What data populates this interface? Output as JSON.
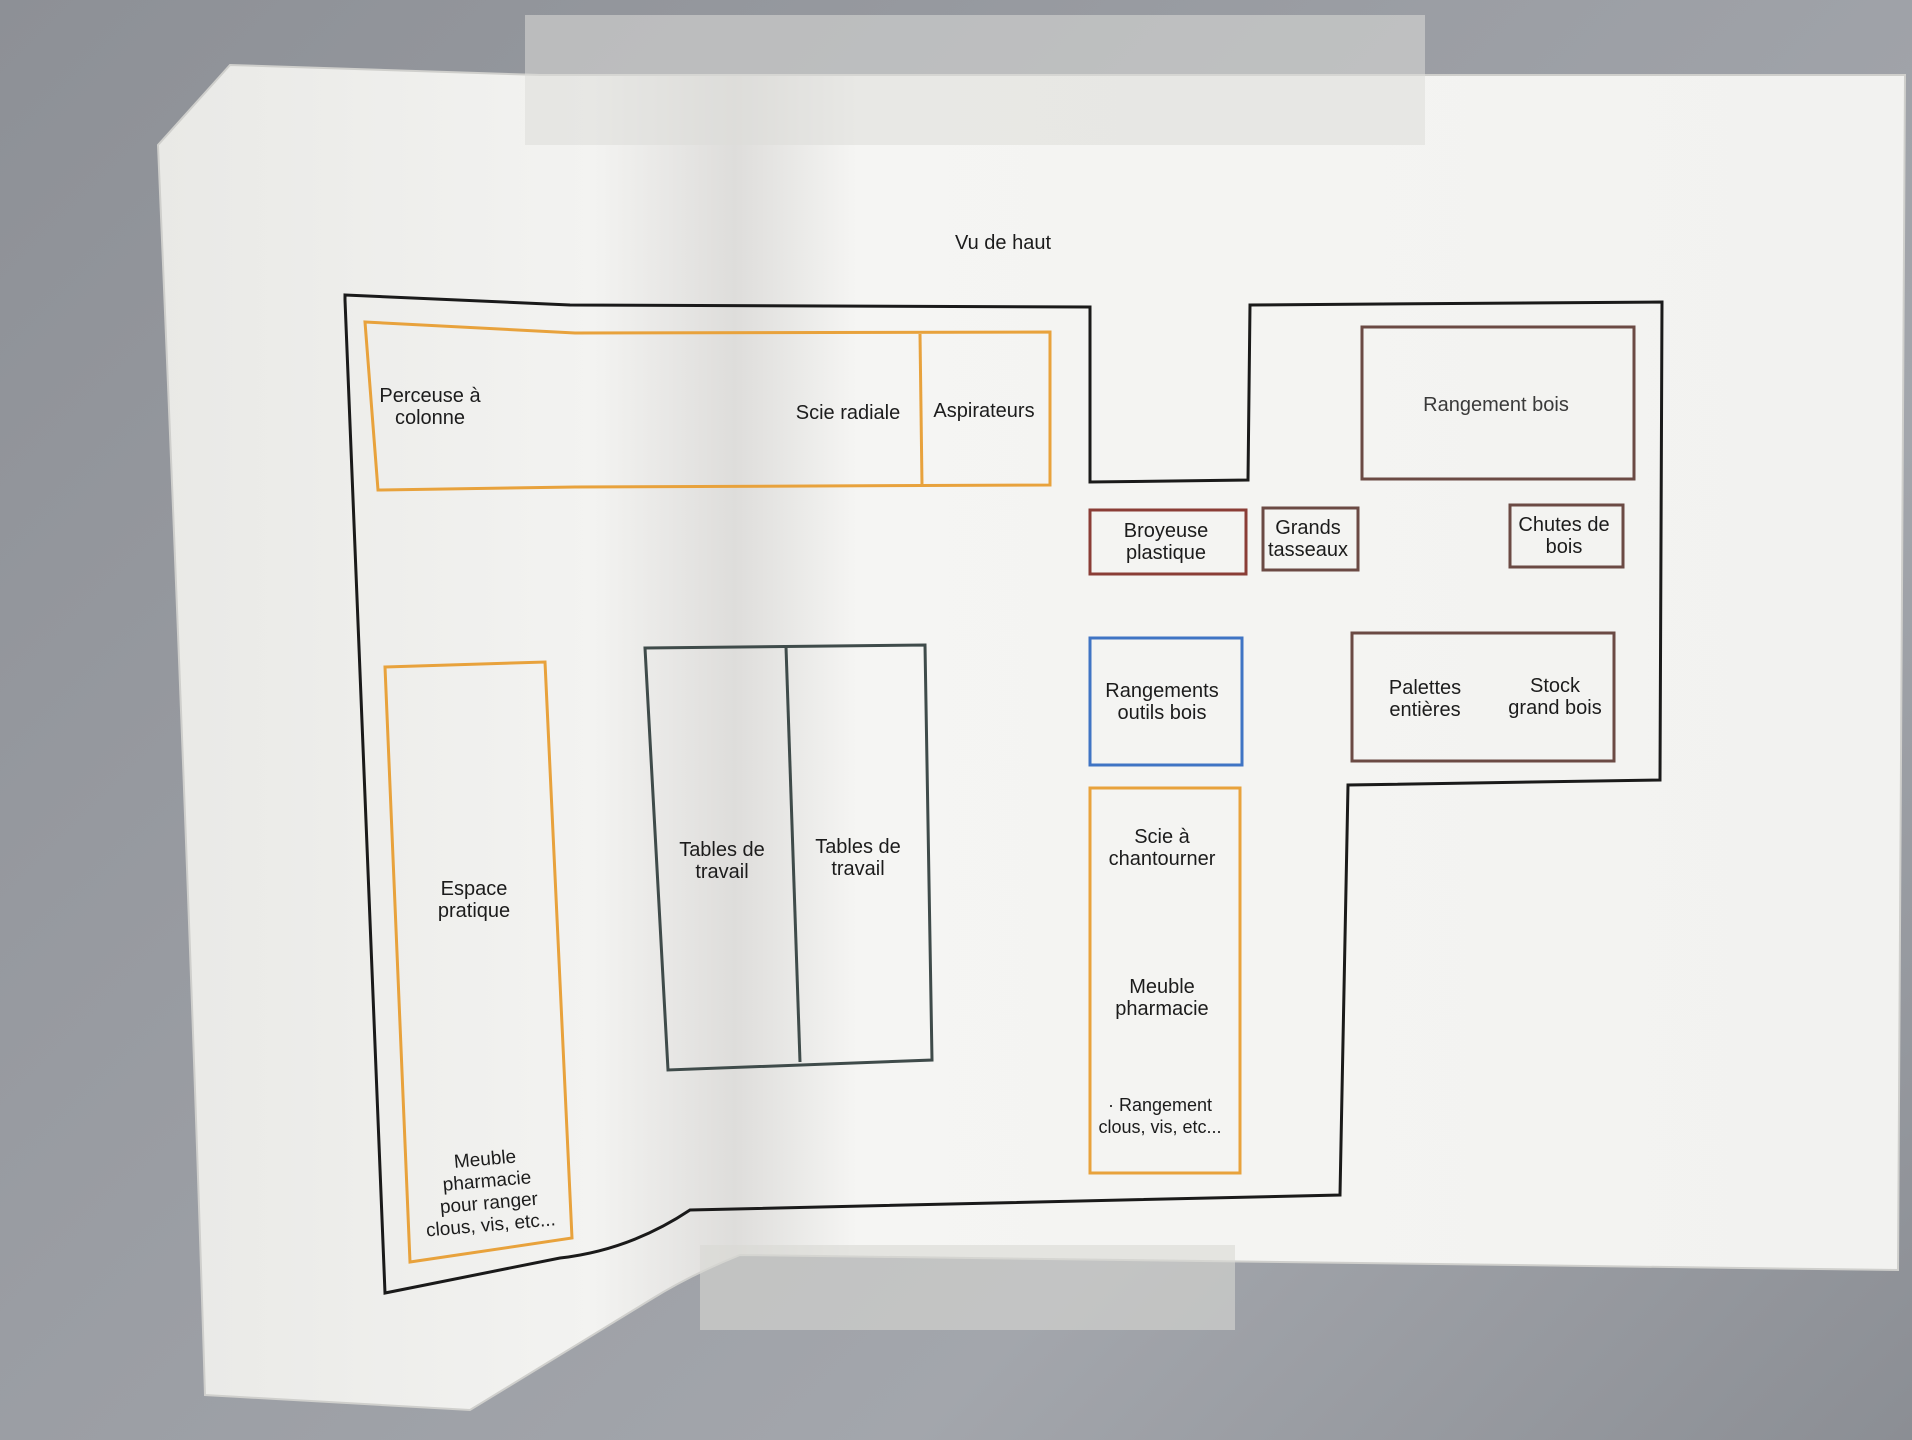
{
  "page": {
    "title": "Vu de haut"
  },
  "rooms": {
    "perceuse": "Perceuse à\ncolonne",
    "scie_radiale": "Scie radiale",
    "aspirateurs": "Aspirateurs",
    "rangement_bois": "Rangement bois",
    "broyeuse": "Broyeuse\nplastique",
    "grands_tasseaux": "Grands\ntasseaux",
    "chutes_bois": "Chutes de\nbois",
    "rangements_outils": "Rangements\noutils bois",
    "palettes": "Palettes\nentières",
    "stock": "Stock\ngrand bois",
    "espace_pratique": "Espace\npratique",
    "meuble_gauche": "Meuble\npharmacie\npour ranger\nclous, vis, etc...",
    "tables_1": "Tables de\ntravail",
    "tables_2": "Tables de\ntravail",
    "scie_chantourner": "Scie à\nchantourner",
    "meuble_pharmacie": "Meuble\npharmacie",
    "rangement_clous": "· Rangement\nclous, vis, etc..."
  },
  "colors": {
    "orange": "#e8a23c",
    "brown": "#6b4a44",
    "red_brown": "#8a3d36",
    "blue": "#3f74c4",
    "gray_green": "#3f4b4a",
    "outline": "#1a1a1a"
  }
}
